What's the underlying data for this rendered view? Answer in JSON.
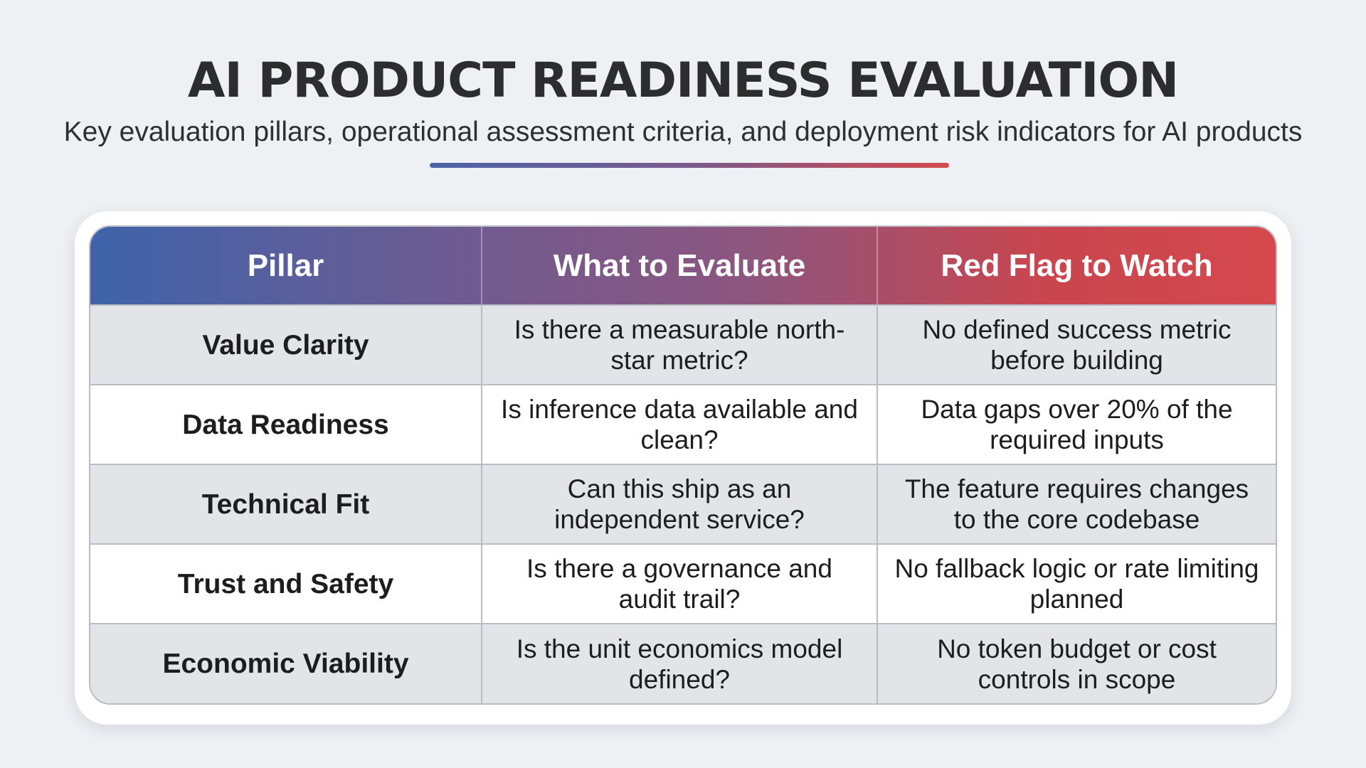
{
  "header": {
    "title": "AI PRODUCT READINESS EVALUATION",
    "subtitle": "Key evaluation pillars, operational assessment criteria, and deployment risk indicators for AI products"
  },
  "colors": {
    "accent_blue": "#4a64a8",
    "accent_purple": "#7a5a8c",
    "accent_red": "#d34a4d",
    "row_alt": "#e3e4e7"
  },
  "table": {
    "columns": [
      "Pillar",
      "What to Evaluate",
      "Red Flag to Watch"
    ],
    "rows": [
      {
        "pillar": "Value Clarity",
        "evaluate": "Is there a measurable north-star metric?",
        "red_flag": "No defined success metric before building"
      },
      {
        "pillar": "Data Readiness",
        "evaluate": "Is inference data available and clean?",
        "red_flag": "Data gaps over 20% of the required inputs"
      },
      {
        "pillar": "Technical Fit",
        "evaluate": "Can this ship as an independent service?",
        "red_flag": "The feature requires changes to the core codebase"
      },
      {
        "pillar": "Trust and Safety",
        "evaluate": "Is there a governance and audit trail?",
        "red_flag": "No fallback logic or rate limiting planned"
      },
      {
        "pillar": "Economic Viability",
        "evaluate": "Is the unit economics model defined?",
        "red_flag": "No token budget or cost controls in scope"
      }
    ]
  }
}
